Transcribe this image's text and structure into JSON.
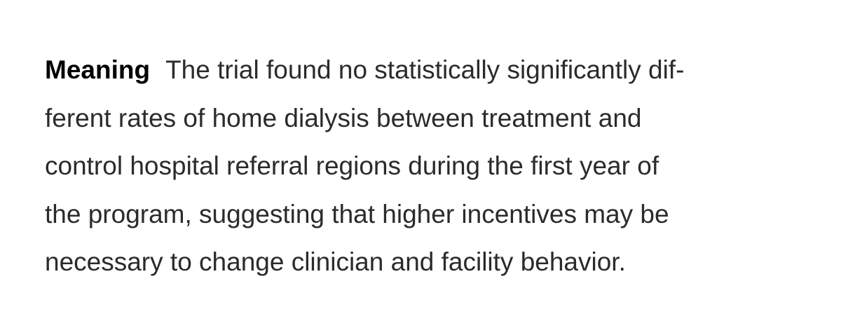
{
  "paragraph": {
    "label": "Meaning",
    "lines": [
      "The trial found no statistically significantly dif-",
      "ferent rates of home dialysis between treatment and",
      "control hospital referral regions during the first year of",
      "the program, suggesting that higher incentives may be",
      "necessary to change clinician and facility behavior."
    ]
  }
}
